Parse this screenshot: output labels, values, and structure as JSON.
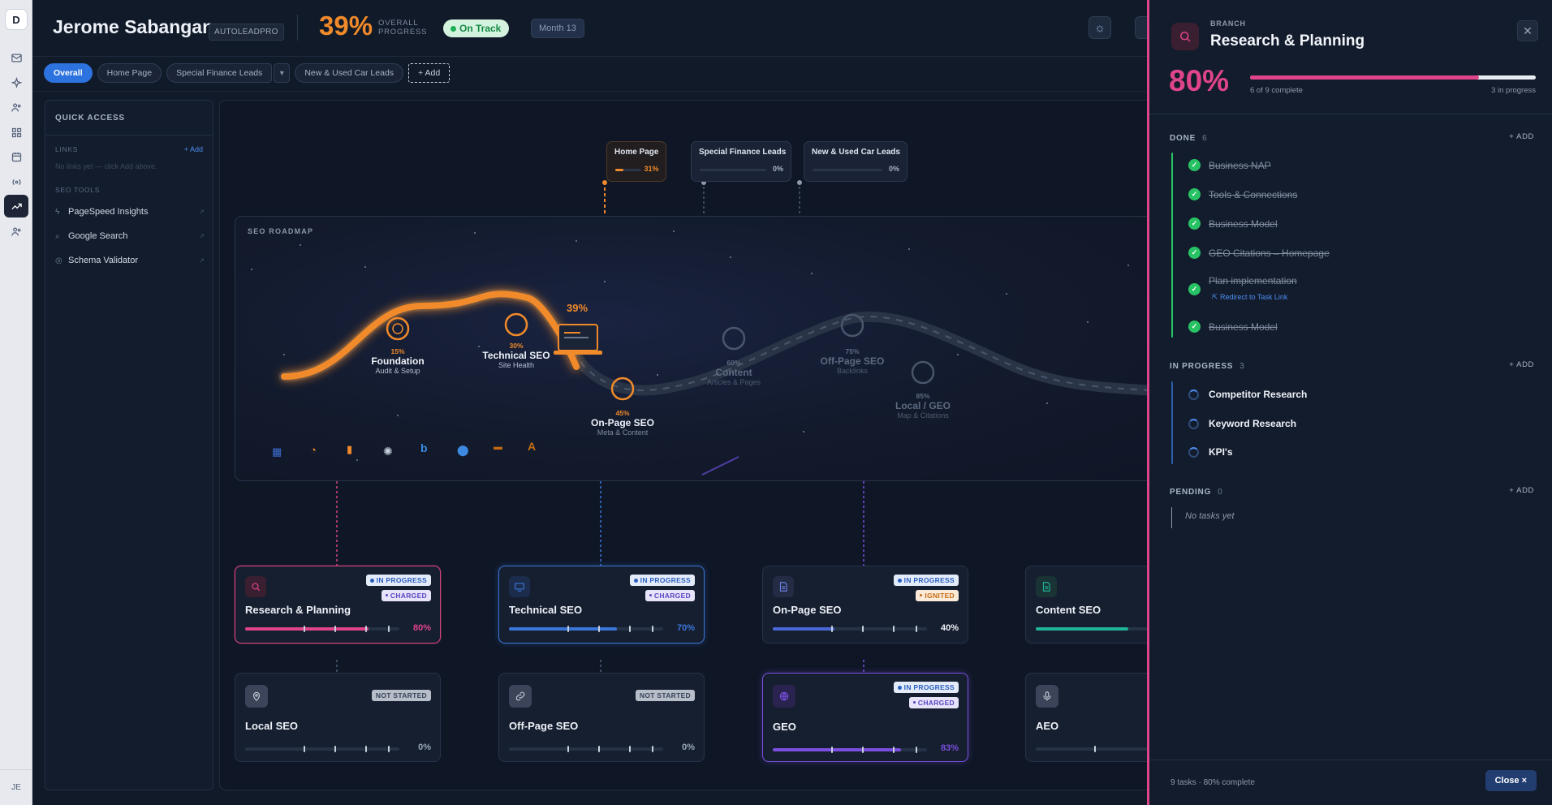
{
  "rail": {
    "logo": "D",
    "user": "JE"
  },
  "header": {
    "name": "Jerome Sabangan",
    "company": "AUTOLEADPRO",
    "overall_pct": "39%",
    "overall_label_1": "OVERALL",
    "overall_label_2": "PROGRESS",
    "status": "On Track",
    "month": "Month 13"
  },
  "tabs": [
    {
      "label": "Overall"
    },
    {
      "label": "Home Page"
    },
    {
      "label": "Special Finance Leads"
    },
    {
      "label": "New & Used Car Leads"
    },
    {
      "label": "+ Add"
    }
  ],
  "quick_access": {
    "title": "QUICK ACCESS",
    "links_label": "LINKS",
    "links_add": "+ Add",
    "links_empty": "No links yet — click Add above.",
    "tools_label": "SEO TOOLS",
    "tools": [
      {
        "label": "PageSpeed Insights",
        "icon": "bolt-icon"
      },
      {
        "label": "Google Search",
        "icon": "search-icon"
      },
      {
        "label": "Schema Validator",
        "icon": "check-circle-icon"
      }
    ]
  },
  "branch_pills": [
    {
      "label": "Home Page",
      "value": "31%",
      "progress": 31
    },
    {
      "label": "Special Finance Leads",
      "value": "0%",
      "progress": 0
    },
    {
      "label": "New & Used Car Leads",
      "value": "0%",
      "progress": 0
    }
  ],
  "roadmap": {
    "title": "SEO ROADMAP",
    "current_pct": "39%",
    "milestones": [
      {
        "pct": "15%",
        "title": "Foundation",
        "sub": "Audit & Setup"
      },
      {
        "pct": "30%",
        "title": "Technical SEO",
        "sub": "Site Health"
      },
      {
        "pct": "45%",
        "title": "On-Page SEO",
        "sub": "Meta & Content"
      },
      {
        "pct": "60%",
        "title": "Content",
        "sub": "Articles & Pages"
      },
      {
        "pct": "75%",
        "title": "Off-Page SEO",
        "sub": "Backlinks"
      },
      {
        "pct": "85%",
        "title": "Local / GEO",
        "sub": "Map & Citations"
      }
    ]
  },
  "cards": [
    {
      "title": "Research & Planning",
      "status": "IN PROGRESS",
      "tag": "CHARGED",
      "pct": "80%",
      "progress": 80,
      "icon": "search-icon"
    },
    {
      "title": "Technical SEO",
      "status": "IN PROGRESS",
      "tag": "CHARGED",
      "pct": "70%",
      "progress": 70,
      "icon": "monitor-icon"
    },
    {
      "title": "On-Page SEO",
      "status": "IN PROGRESS",
      "tag": "IGNITED",
      "pct": "40%",
      "progress": 40,
      "icon": "document-icon"
    },
    {
      "title": "Content SEO",
      "pct": "",
      "progress": 60,
      "icon": "file-text-icon"
    },
    {
      "title": "Local SEO",
      "status": "NOT STARTED",
      "pct": "0%",
      "progress": 0,
      "icon": "map-pin-icon"
    },
    {
      "title": "Off-Page SEO",
      "status": "NOT STARTED",
      "pct": "0%",
      "progress": 0,
      "icon": "link-icon"
    },
    {
      "title": "GEO",
      "status": "IN PROGRESS",
      "tag": "CHARGED",
      "pct": "83%",
      "progress": 83,
      "icon": "globe-icon"
    },
    {
      "title": "AEO",
      "pct": "",
      "progress": 0,
      "icon": "microphone-icon"
    }
  ],
  "panel": {
    "kicker": "BRANCH",
    "title": "Research & Planning",
    "pct": "80%",
    "progress": 80,
    "complete": "6 of 9 complete",
    "in_progress": "3 in progress",
    "done_label": "DONE",
    "done_count": "6",
    "add": "+ ADD",
    "done": [
      {
        "label": "Business NAP"
      },
      {
        "label": "Tools & Connections"
      },
      {
        "label": "Business Model"
      },
      {
        "label": "GEO Citations – Homepage"
      },
      {
        "label": "Plan implementation"
      },
      {
        "label": "Business Model"
      }
    ],
    "redirect": "Redirect to Task Link",
    "ip_label": "IN PROGRESS",
    "ip_count": "3",
    "in_progress_tasks": [
      {
        "label": "Competitor Research"
      },
      {
        "label": "Keyword Research"
      },
      {
        "label": "KPI's"
      }
    ],
    "pending_label": "PENDING",
    "pending_count": "0",
    "pending_empty": "No tasks yet",
    "footer": "9 tasks · 80% complete",
    "close": "Close ×"
  }
}
